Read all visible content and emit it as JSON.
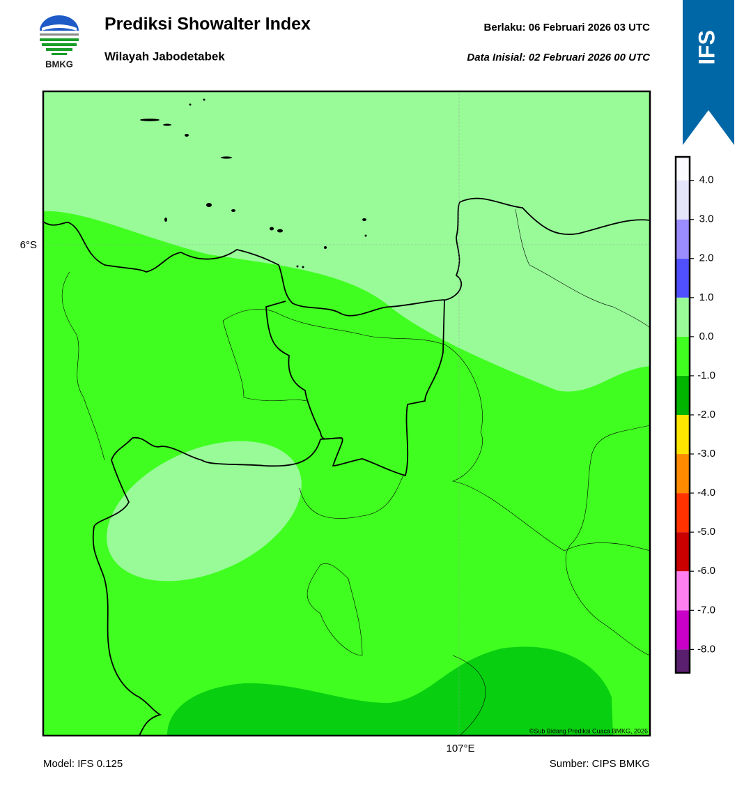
{
  "header": {
    "logo_text": "BMKG",
    "title": "Prediksi Showalter Index",
    "subtitle": "Wilayah Jabodetabek",
    "valid_time": "Berlaku:  06 Februari 2026 03 UTC",
    "init_time": "Data Inisial:  02 Februari 2026 00 UTC",
    "banner": "IFS"
  },
  "map": {
    "lat_label": "6°S",
    "lon_label": "107°E",
    "copyright": "©Sub Bidang Prediksi Cuaca BMKG, 2026"
  },
  "colorbar": {
    "lim": [
      -8.6,
      4.6
    ],
    "bins": [
      -8.6,
      -8,
      -7,
      -6,
      -5,
      -4,
      -3,
      -2,
      -1,
      0,
      1,
      2,
      3,
      4,
      4.6
    ],
    "colors": [
      "#5a1f6e",
      "#c800c8",
      "#ff7ff0",
      "#c80000",
      "#ff3200",
      "#ff8c00",
      "#ffe600",
      "#00b400",
      "#40ff20",
      "#98fb98",
      "#5050ff",
      "#9b8cff",
      "#e4e4fa",
      "#fafaff"
    ],
    "ticks": [
      {
        "value": 4,
        "label": "4.0"
      },
      {
        "value": 3,
        "label": "3.0"
      },
      {
        "value": 2,
        "label": "2.0"
      },
      {
        "value": 1,
        "label": "1.0"
      },
      {
        "value": 0,
        "label": "0.0"
      },
      {
        "value": -1,
        "label": "-1.0"
      },
      {
        "value": -2,
        "label": "-2.0"
      },
      {
        "value": -3,
        "label": "-3.0"
      },
      {
        "value": -4,
        "label": "-4.0"
      },
      {
        "value": -5,
        "label": "-5.0"
      },
      {
        "value": -6,
        "label": "-6.0"
      },
      {
        "value": -7,
        "label": "-7.0"
      },
      {
        "value": -8,
        "label": "-8.0"
      }
    ]
  },
  "footer": {
    "model": "Model: IFS 0.125",
    "source": "Sumber: CIPS BMKG"
  }
}
